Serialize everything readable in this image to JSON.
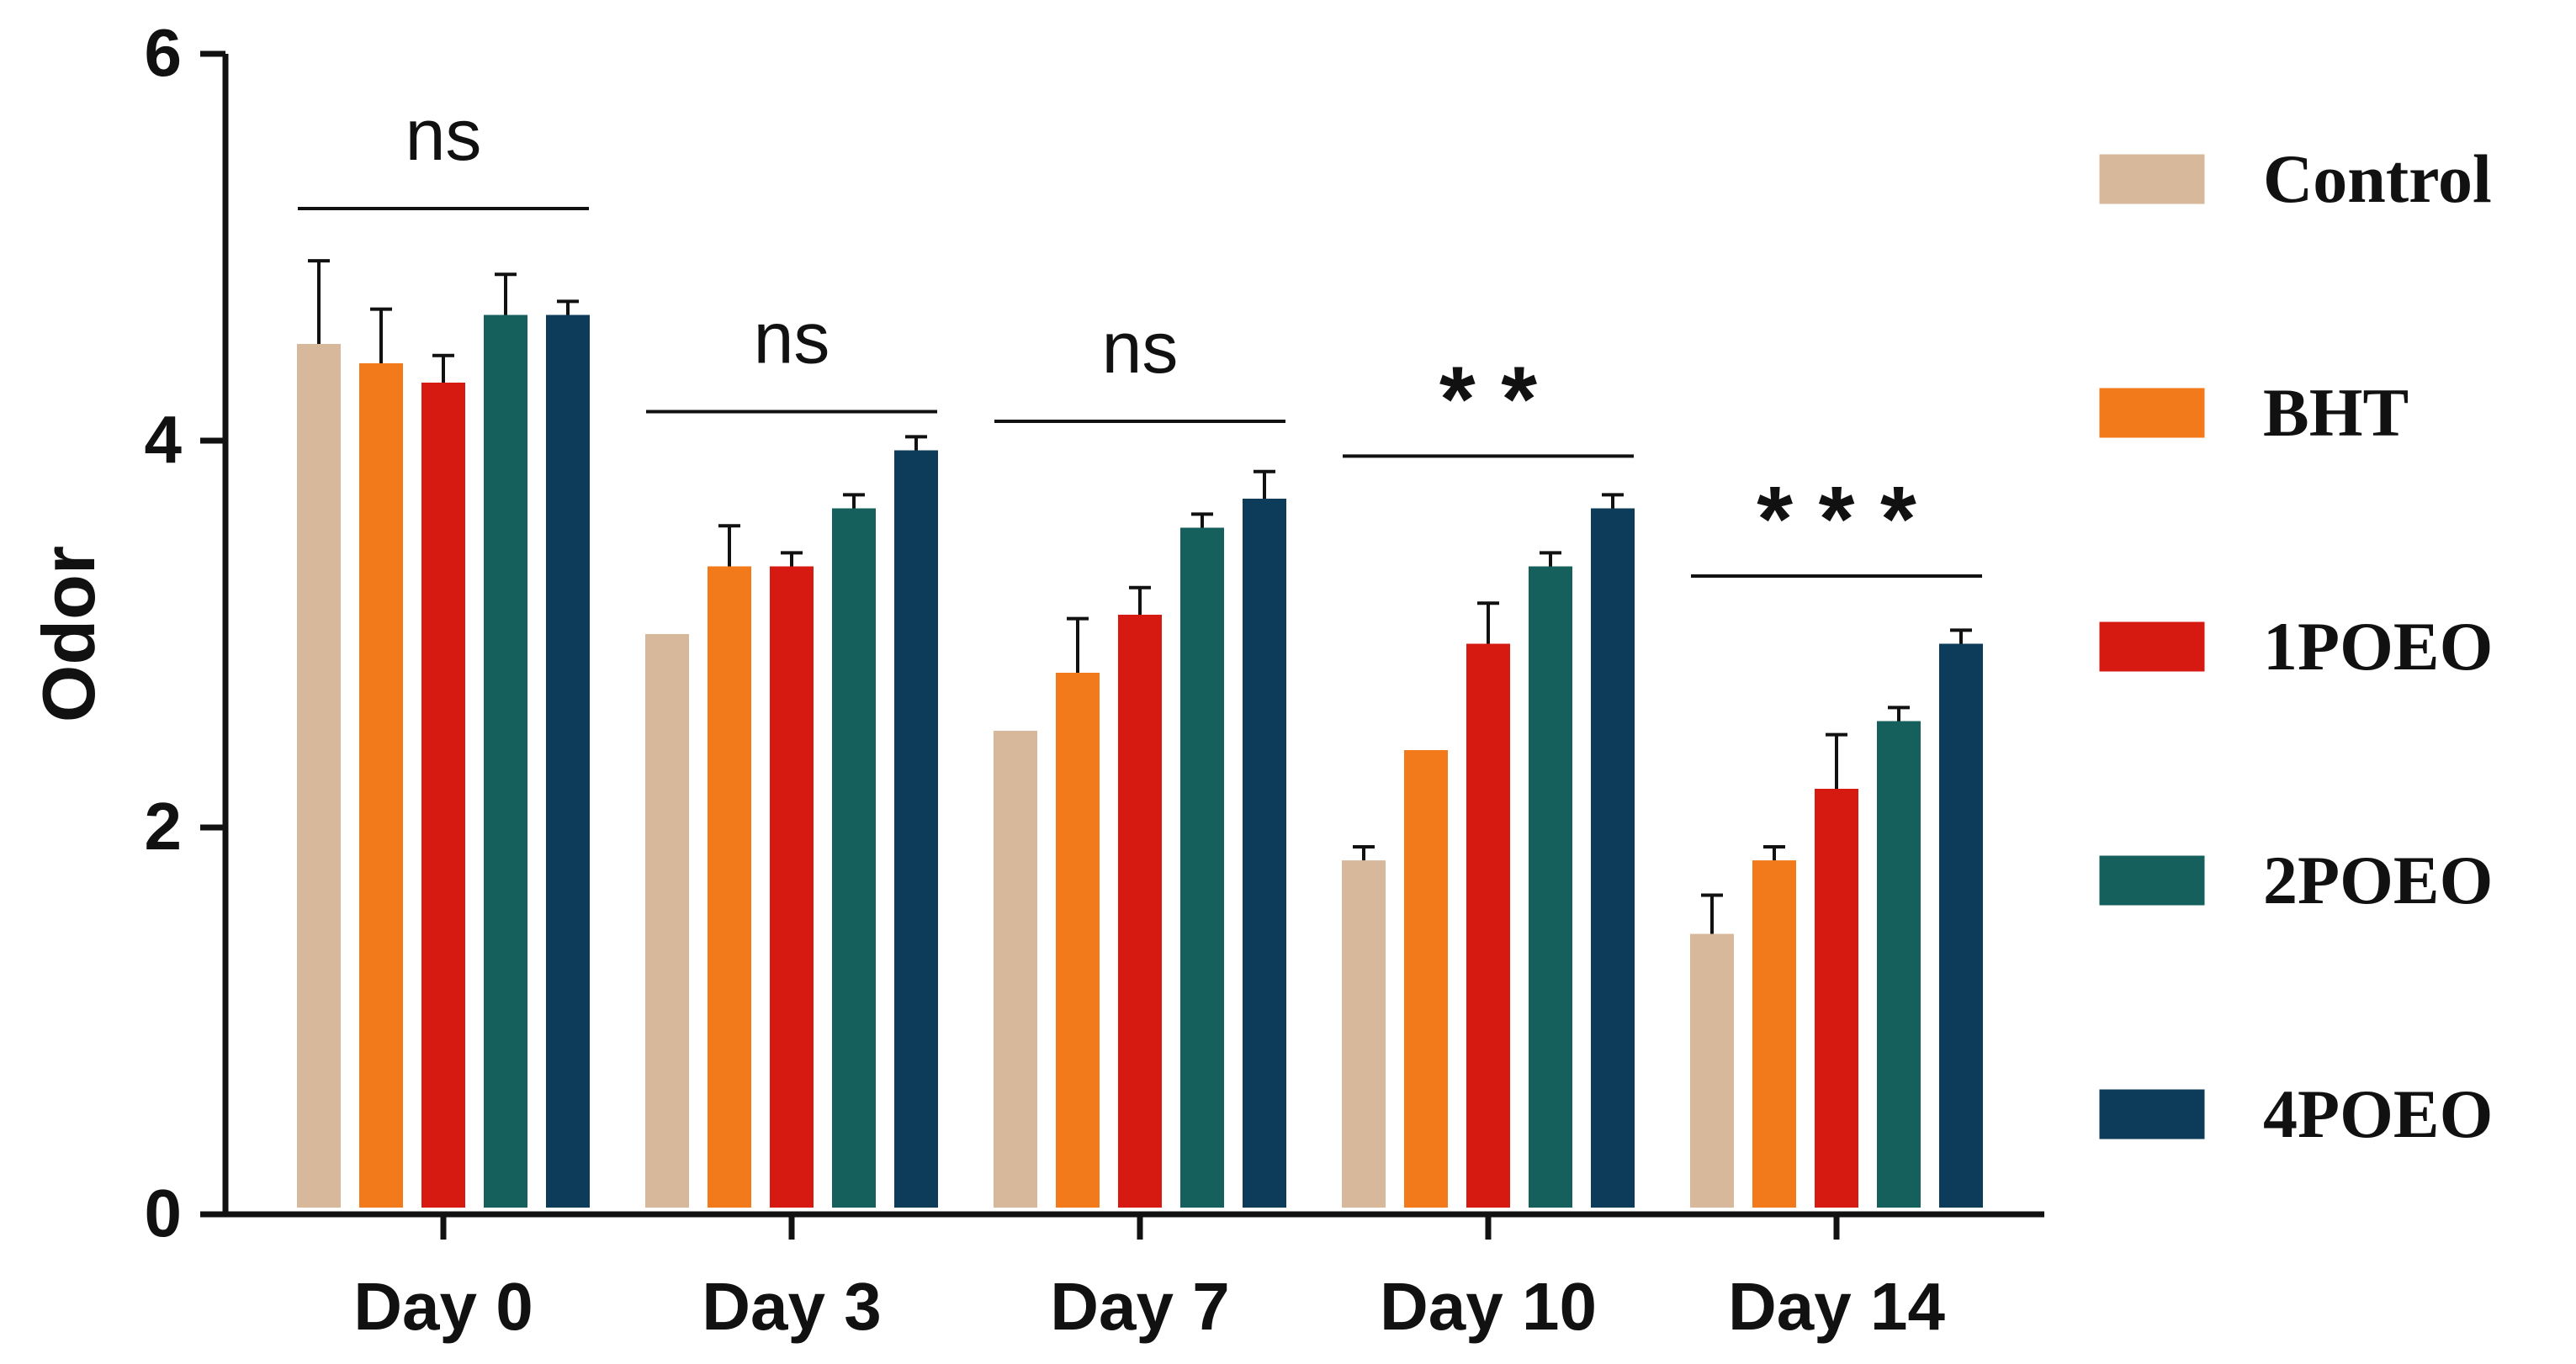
{
  "chart_data": {
    "type": "bar",
    "title": "",
    "xlabel": "",
    "ylabel": "Odor",
    "ylim": [
      0,
      6
    ],
    "yticks": [
      0,
      2,
      4,
      6
    ],
    "grid": false,
    "legend_position": "right",
    "categories": [
      "Day 0",
      "Day 3",
      "Day 7",
      "Day 10",
      "Day 14"
    ],
    "series": [
      {
        "name": "Control",
        "color": "#d8b89a",
        "values": [
          4.5,
          3.0,
          2.5,
          1.83,
          1.45
        ],
        "errors": [
          0.43,
          0.0,
          0.0,
          0.07,
          0.2
        ]
      },
      {
        "name": "BHT",
        "color": "#f27a1a",
        "values": [
          4.4,
          3.35,
          2.8,
          2.4,
          1.83
        ],
        "errors": [
          0.28,
          0.21,
          0.28,
          0.0,
          0.07
        ]
      },
      {
        "name": "1POEO",
        "color": "#d61a12",
        "values": [
          4.3,
          3.35,
          3.1,
          2.95,
          2.2
        ],
        "errors": [
          0.14,
          0.07,
          0.14,
          0.21,
          0.28
        ]
      },
      {
        "name": "2POEO",
        "color": "#15605c",
        "values": [
          4.65,
          3.65,
          3.55,
          3.35,
          2.55
        ],
        "errors": [
          0.21,
          0.07,
          0.07,
          0.07,
          0.07
        ]
      },
      {
        "name": "4POEO",
        "color": "#0d3c5a",
        "values": [
          4.65,
          3.95,
          3.7,
          3.65,
          2.95
        ],
        "errors": [
          0.07,
          0.07,
          0.14,
          0.07,
          0.07
        ]
      }
    ],
    "annotations": [
      {
        "category": "Day 0",
        "text": "ns",
        "y": 5.2
      },
      {
        "category": "Day 3",
        "text": "ns",
        "y": 4.15
      },
      {
        "category": "Day 7",
        "text": "ns",
        "y": 4.1
      },
      {
        "category": "Day 10",
        "text": "* *",
        "y": 3.92
      },
      {
        "category": "Day 14",
        "text": "* * *",
        "y": 3.3
      }
    ]
  }
}
